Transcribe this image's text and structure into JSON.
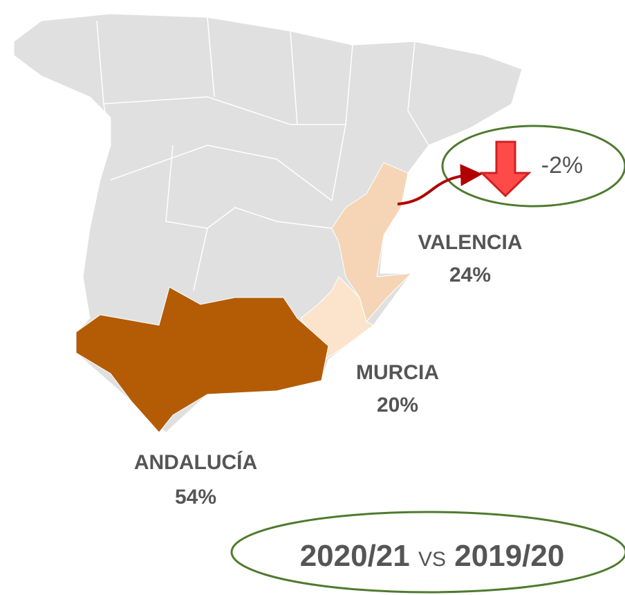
{
  "regions": [
    {
      "name": "VALENCIA",
      "share": "24%"
    },
    {
      "name": "MURCIA",
      "share": "20%"
    },
    {
      "name": "ANDALUCÍA",
      "share": "54%"
    }
  ],
  "change": {
    "value": "-2%"
  },
  "comparison": {
    "current": "2020/21",
    "separator": "VS",
    "previous": "2019/20"
  }
}
